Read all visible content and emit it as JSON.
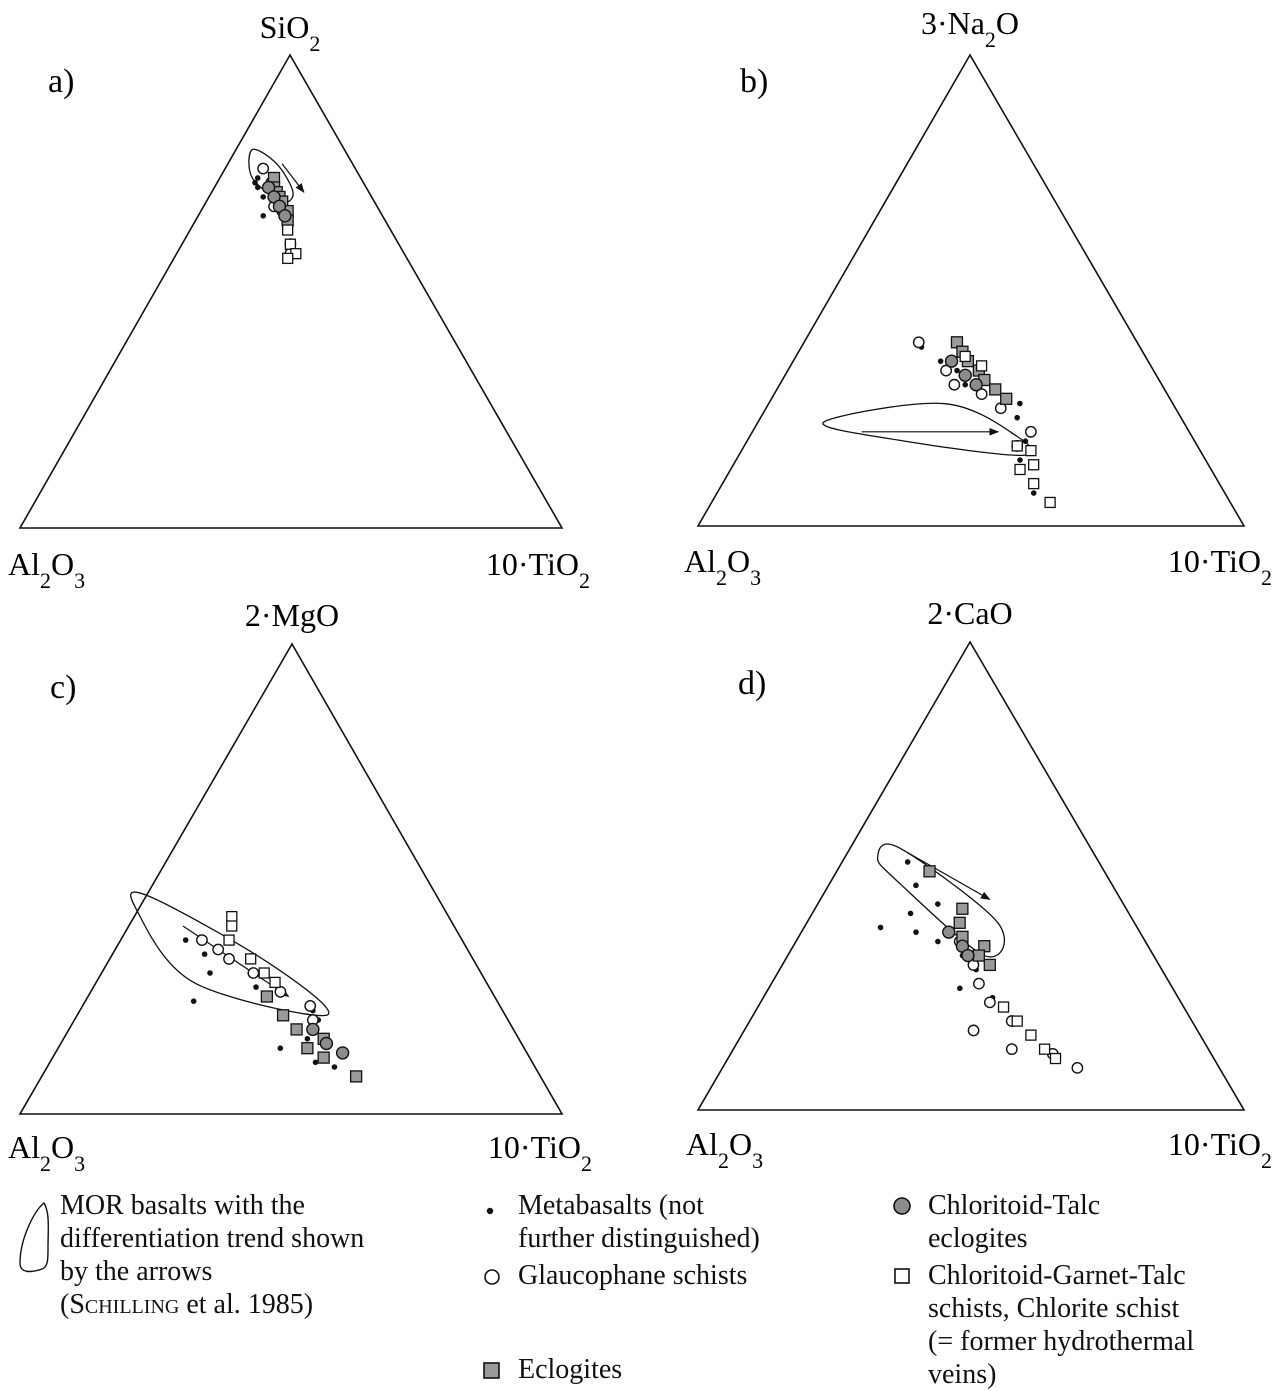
{
  "panels": [
    {
      "id": "a",
      "label": "a)",
      "top": "SiO2",
      "left": "Al2O3",
      "right": "10·TiO2"
    },
    {
      "id": "b",
      "label": "b)",
      "top": "3·Na2O",
      "left": "Al2O3",
      "right": "10·TiO2"
    },
    {
      "id": "c",
      "label": "c)",
      "top": "2·MgO",
      "left": "Al2O3",
      "right": "10·TiO2"
    },
    {
      "id": "d",
      "label": "d)",
      "top": "2·CaO",
      "left": "Al2O3",
      "right": "10·TiO2"
    }
  ],
  "legend": {
    "mor": {
      "text": "MOR basalts with the\ndifferentiation trend shown\nby the arrows",
      "ref_author": "Schilling",
      "ref_rest": " et al. 1985)",
      "ref_open": "("
    },
    "metabasalts": "Metabasalts (not\nfurther distinguished)",
    "glaucophane": "Glaucophane schists",
    "eclogites": "Eclogites",
    "chloritoid_talc": "Chloritoid-Talc\neclogites",
    "chloritoid_garnet": "Chloritoid-Garnet-Talc\nschists, Chlorite schist\n(= former hydrothermal\nveins)"
  },
  "colors": {
    "ink": "#111111",
    "eclogite_fill": "#9a9a9a",
    "ctalc_fill": "#8c8c8c",
    "background": "#ffffff"
  },
  "chart_data": [
    {
      "type": "scatter",
      "subtype": "ternary",
      "panel": "a)",
      "apices": {
        "top": "SiO2",
        "left": "Al2O3",
        "right": "10·TiO2"
      },
      "coords": "barycentric fractions [top, left, right]",
      "series": [
        {
          "name": "Metabasalts (not further distinguished)",
          "points": [
            [
              0.73,
              0.2,
              0.07
            ],
            [
              0.74,
              0.19,
              0.07
            ],
            [
              0.72,
              0.2,
              0.08
            ],
            [
              0.7,
              0.2,
              0.1
            ],
            [
              0.66,
              0.22,
              0.12
            ]
          ]
        },
        {
          "name": "Glaucophane schists",
          "points": [
            [
              0.76,
              0.17,
              0.07
            ],
            [
              0.73,
              0.17,
              0.1
            ],
            [
              0.7,
              0.18,
              0.12
            ],
            [
              0.68,
              0.19,
              0.13
            ],
            [
              0.67,
              0.18,
              0.15
            ],
            [
              0.6,
              0.2,
              0.2
            ],
            [
              0.58,
              0.21,
              0.21
            ]
          ]
        },
        {
          "name": "Eclogites",
          "points": [
            [
              0.74,
              0.16,
              0.1
            ],
            [
              0.72,
              0.17,
              0.11
            ],
            [
              0.71,
              0.17,
              0.12
            ],
            [
              0.7,
              0.17,
              0.13
            ],
            [
              0.69,
              0.17,
              0.14
            ],
            [
              0.67,
              0.17,
              0.16
            ],
            [
              0.65,
              0.18,
              0.17
            ]
          ]
        },
        {
          "name": "Chloritoid-Talc eclogites",
          "points": [
            [
              0.72,
              0.18,
              0.1
            ],
            [
              0.7,
              0.18,
              0.12
            ],
            [
              0.68,
              0.18,
              0.14
            ],
            [
              0.66,
              0.18,
              0.16
            ]
          ]
        },
        {
          "name": "Chloritoid-Garnet-Talc schists, Chlorite schist (= former hydrothermal veins)",
          "points": [
            [
              0.63,
              0.19,
              0.18
            ],
            [
              0.6,
              0.2,
              0.2
            ],
            [
              0.58,
              0.2,
              0.22
            ],
            [
              0.57,
              0.22,
              0.21
            ]
          ]
        }
      ],
      "mor_field": [
        [
          0.8,
          0.17,
          0.03
        ],
        [
          0.77,
          0.14,
          0.09
        ],
        [
          0.71,
          0.14,
          0.15
        ],
        [
          0.69,
          0.17,
          0.14
        ],
        [
          0.74,
          0.2,
          0.06
        ]
      ],
      "trend_arrow": [
        [
          0.77,
          0.13,
          0.1
        ],
        [
          0.71,
          0.12,
          0.17
        ]
      ]
    },
    {
      "type": "scatter",
      "subtype": "ternary",
      "panel": "b)",
      "apices": {
        "top": "3·Na2O",
        "left": "Al2O3",
        "right": "10·TiO2"
      },
      "coords": "barycentric fractions [top, left, right]",
      "series": [
        {
          "name": "Metabasalts (not further distinguished)",
          "points": [
            [
              0.38,
              0.4,
              0.22
            ],
            [
              0.35,
              0.38,
              0.27
            ],
            [
              0.33,
              0.36,
              0.31
            ],
            [
              0.3,
              0.36,
              0.34
            ],
            [
              0.28,
              0.34,
              0.38
            ],
            [
              0.26,
              0.31,
              0.43
            ],
            [
              0.26,
              0.28,
              0.46
            ],
            [
              0.23,
              0.3,
              0.47
            ],
            [
              0.18,
              0.31,
              0.51
            ],
            [
              0.14,
              0.34,
              0.52
            ],
            [
              0.07,
              0.35,
              0.58
            ]
          ]
        },
        {
          "name": "Glaucophane schists",
          "points": [
            [
              0.39,
              0.4,
              0.21
            ],
            [
              0.33,
              0.38,
              0.29
            ],
            [
              0.3,
              0.38,
              0.32
            ],
            [
              0.28,
              0.34,
              0.38
            ],
            [
              0.25,
              0.32,
              0.43
            ],
            [
              0.2,
              0.29,
              0.51
            ],
            [
              0.17,
              0.33,
              0.5
            ]
          ]
        },
        {
          "name": "Eclogites",
          "points": [
            [
              0.39,
              0.33,
              0.28
            ],
            [
              0.37,
              0.33,
              0.3
            ],
            [
              0.35,
              0.33,
              0.32
            ],
            [
              0.33,
              0.32,
              0.35
            ],
            [
              0.31,
              0.32,
              0.37
            ],
            [
              0.29,
              0.31,
              0.4
            ],
            [
              0.27,
              0.3,
              0.43
            ]
          ]
        },
        {
          "name": "Chloritoid-Talc eclogites",
          "points": [
            [
              0.35,
              0.36,
              0.29
            ],
            [
              0.32,
              0.35,
              0.33
            ],
            [
              0.3,
              0.34,
              0.36
            ]
          ]
        },
        {
          "name": "Chloritoid-Garnet-Talc schists, Chlorite schist (= former hydrothermal veins)",
          "points": [
            [
              0.36,
              0.33,
              0.31
            ],
            [
              0.34,
              0.31,
              0.35
            ],
            [
              0.17,
              0.33,
              0.5
            ],
            [
              0.16,
              0.31,
              0.53
            ],
            [
              0.13,
              0.32,
              0.55
            ],
            [
              0.12,
              0.35,
              0.53
            ],
            [
              0.09,
              0.34,
              0.57
            ],
            [
              0.05,
              0.33,
              0.62
            ]
          ]
        }
      ],
      "mor_field": [
        [
          0.22,
          0.66,
          0.12
        ],
        [
          0.26,
          0.42,
          0.32
        ],
        [
          0.19,
          0.32,
          0.49
        ],
        [
          0.15,
          0.33,
          0.52
        ],
        [
          0.18,
          0.53,
          0.29
        ]
      ],
      "trend_arrow": [
        [
          0.2,
          0.6,
          0.2
        ],
        [
          0.2,
          0.35,
          0.45
        ]
      ]
    },
    {
      "type": "scatter",
      "subtype": "ternary",
      "panel": "c)",
      "apices": {
        "top": "2·MgO",
        "left": "Al2O3",
        "right": "10·TiO2"
      },
      "coords": "barycentric fractions [top, left, right]",
      "series": [
        {
          "name": "Metabasalts (not further distinguished)",
          "points": [
            [
              0.37,
              0.51,
              0.12
            ],
            [
              0.34,
              0.49,
              0.17
            ],
            [
              0.3,
              0.5,
              0.2
            ],
            [
              0.27,
              0.43,
              0.3
            ],
            [
              0.24,
              0.56,
              0.2
            ],
            [
              0.22,
              0.35,
              0.43
            ],
            [
              0.2,
              0.35,
              0.45
            ],
            [
              0.16,
              0.39,
              0.45
            ],
            [
              0.14,
              0.45,
              0.41
            ],
            [
              0.11,
              0.4,
              0.49
            ],
            [
              0.1,
              0.37,
              0.53
            ]
          ]
        },
        {
          "name": "Glaucophane schists",
          "points": [
            [
              0.37,
              0.48,
              0.15
            ],
            [
              0.35,
              0.46,
              0.19
            ],
            [
              0.33,
              0.45,
              0.22
            ],
            [
              0.3,
              0.42,
              0.28
            ],
            [
              0.26,
              0.39,
              0.35
            ],
            [
              0.23,
              0.35,
              0.42
            ],
            [
              0.2,
              0.36,
              0.44
            ]
          ]
        },
        {
          "name": "Eclogites",
          "points": [
            [
              0.25,
              0.42,
              0.33
            ],
            [
              0.21,
              0.41,
              0.38
            ],
            [
              0.18,
              0.4,
              0.42
            ],
            [
              0.16,
              0.36,
              0.48
            ],
            [
              0.14,
              0.4,
              0.46
            ],
            [
              0.12,
              0.38,
              0.5
            ],
            [
              0.08,
              0.34,
              0.58
            ]
          ]
        },
        {
          "name": "Chloritoid-Talc eclogites",
          "points": [
            [
              0.18,
              0.37,
              0.45
            ],
            [
              0.15,
              0.36,
              0.49
            ],
            [
              0.13,
              0.34,
              0.53
            ]
          ]
        },
        {
          "name": "Chloritoid-Garnet-Talc schists, Chlorite schist (= former hydrothermal veins)",
          "points": [
            [
              0.42,
              0.4,
              0.18
            ],
            [
              0.4,
              0.41,
              0.19
            ],
            [
              0.37,
              0.43,
              0.2
            ],
            [
              0.33,
              0.41,
              0.26
            ],
            [
              0.3,
              0.4,
              0.3
            ],
            [
              0.28,
              0.39,
              0.33
            ]
          ]
        }
      ],
      "mor_field": [
        [
          0.47,
          0.54,
          0.0
        ],
        [
          0.32,
          0.38,
          0.3
        ],
        [
          0.21,
          0.33,
          0.46
        ],
        [
          0.28,
          0.54,
          0.18
        ],
        [
          0.44,
          0.58,
          0.0
        ]
      ],
      "trend_arrow": [
        [
          0.4,
          0.5,
          0.1
        ],
        [
          0.25,
          0.38,
          0.37
        ]
      ]
    },
    {
      "type": "scatter",
      "subtype": "ternary",
      "panel": "d)",
      "apices": {
        "top": "2·CaO",
        "left": "Al2O3",
        "right": "10·TiO2"
      },
      "coords": "barycentric fractions [top, left, right]",
      "series": [
        {
          "name": "Metabasalts (not further distinguished)",
          "points": [
            [
              0.53,
              0.35,
              0.12
            ],
            [
              0.48,
              0.36,
              0.16
            ],
            [
              0.44,
              0.34,
              0.22
            ],
            [
              0.42,
              0.4,
              0.18
            ],
            [
              0.39,
              0.47,
              0.14
            ],
            [
              0.38,
              0.41,
              0.21
            ],
            [
              0.36,
              0.38,
              0.26
            ],
            [
              0.33,
              0.35,
              0.32
            ],
            [
              0.3,
              0.34,
              0.36
            ],
            [
              0.26,
              0.39,
              0.35
            ],
            [
              0.24,
              0.34,
              0.42
            ]
          ]
        },
        {
          "name": "Glaucophane schists",
          "points": [
            [
              0.36,
              0.34,
              0.3
            ],
            [
              0.31,
              0.34,
              0.35
            ],
            [
              0.27,
              0.35,
              0.38
            ],
            [
              0.23,
              0.35,
              0.42
            ],
            [
              0.19,
              0.33,
              0.48
            ],
            [
              0.17,
              0.41,
              0.42
            ],
            [
              0.13,
              0.36,
              0.51
            ],
            [
              0.12,
              0.29,
              0.59
            ],
            [
              0.09,
              0.26,
              0.65
            ]
          ]
        },
        {
          "name": "Eclogites",
          "points": [
            [
              0.51,
              0.32,
              0.17
            ],
            [
              0.43,
              0.3,
              0.27
            ],
            [
              0.4,
              0.32,
              0.28
            ],
            [
              0.37,
              0.33,
              0.3
            ],
            [
              0.35,
              0.3,
              0.35
            ],
            [
              0.33,
              0.32,
              0.35
            ],
            [
              0.31,
              0.31,
              0.38
            ]
          ]
        },
        {
          "name": "Chloritoid-Talc eclogites",
          "points": [
            [
              0.38,
              0.35,
              0.27
            ],
            [
              0.35,
              0.34,
              0.31
            ],
            [
              0.33,
              0.34,
              0.33
            ]
          ]
        },
        {
          "name": "Chloritoid-Garnet-Talc schists, Chlorite schist (= former hydrothermal veins)",
          "points": [
            [
              0.22,
              0.33,
              0.45
            ],
            [
              0.19,
              0.32,
              0.49
            ],
            [
              0.16,
              0.31,
              0.53
            ],
            [
              0.13,
              0.3,
              0.57
            ],
            [
              0.11,
              0.29,
              0.6
            ]
          ]
        }
      ],
      "mor_field": [
        [
          0.54,
          0.4,
          0.06
        ],
        [
          0.56,
          0.35,
          0.09
        ],
        [
          0.4,
          0.25,
          0.35
        ],
        [
          0.33,
          0.31,
          0.36
        ],
        [
          0.49,
          0.39,
          0.12
        ]
      ],
      "trend_arrow": [
        [
          0.55,
          0.34,
          0.11
        ],
        [
          0.45,
          0.24,
          0.31
        ]
      ]
    }
  ]
}
